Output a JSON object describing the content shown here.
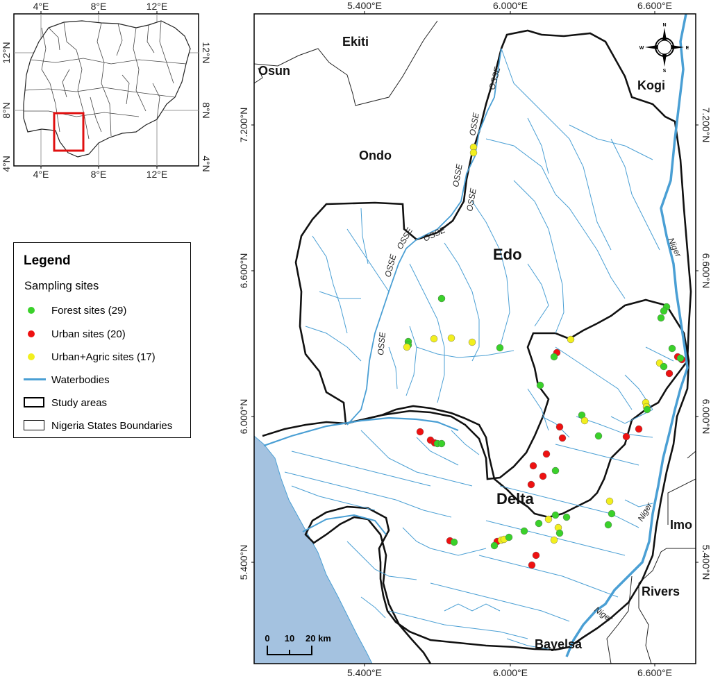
{
  "inset_map": {
    "top_ticks": [
      "4°E",
      "8°E",
      "12°E"
    ],
    "bottom_ticks": [
      "4°E",
      "8°E",
      "12°E"
    ],
    "left_ticks": [
      "12°N",
      "8°N",
      "4°N"
    ],
    "right_ticks": [
      "12°N",
      "8°N",
      "4°N"
    ]
  },
  "main_map": {
    "top_ticks": [
      "5.400°E",
      "6.000°E",
      "6.600°E"
    ],
    "bottom_ticks": [
      "5.400°E",
      "6.000°E",
      "6.600°E"
    ],
    "left_ticks": [
      "7.200°N",
      "6.600°N",
      "6.000°N",
      "5.400°N"
    ],
    "right_ticks": [
      "7.200°N",
      "6.600°N",
      "6.000°N",
      "5.400°N"
    ],
    "states": {
      "ekiti": "Ekiti",
      "osun": "Osun",
      "kogi": "Kogi",
      "ondo": "Ondo",
      "edo": "Edo",
      "delta": "Delta",
      "imo": "Imo",
      "rivers": "Rivers",
      "bayelsa": "Bayelsa"
    },
    "rivers": {
      "osse": "OSSE",
      "niger": "Niger"
    },
    "scale": {
      "zero": "0",
      "ten": "10",
      "twenty": "20 km"
    },
    "compass": {
      "n": "N",
      "s": "S",
      "e": "E",
      "w": "W"
    }
  },
  "legend": {
    "title": "Legend",
    "subtitle": "Sampling sites",
    "items": [
      {
        "label": "Forest sites (29)",
        "color": "#3ad12a"
      },
      {
        "label": "Urban sites (20)",
        "color": "#ee1111"
      },
      {
        "label": "Urban+Agric sites (17)",
        "color": "#f2ef1e"
      },
      {
        "label": "Waterbodies",
        "color": "#4a9fd4"
      },
      {
        "label": "Study areas"
      },
      {
        "label": "Nigeria States Boundaries"
      }
    ]
  },
  "colors": {
    "water": "#4a9fd4",
    "sea": "#a4c2e0",
    "forest": "#3ad12a",
    "urban": "#ee1111",
    "agric": "#f2ef1e"
  }
}
